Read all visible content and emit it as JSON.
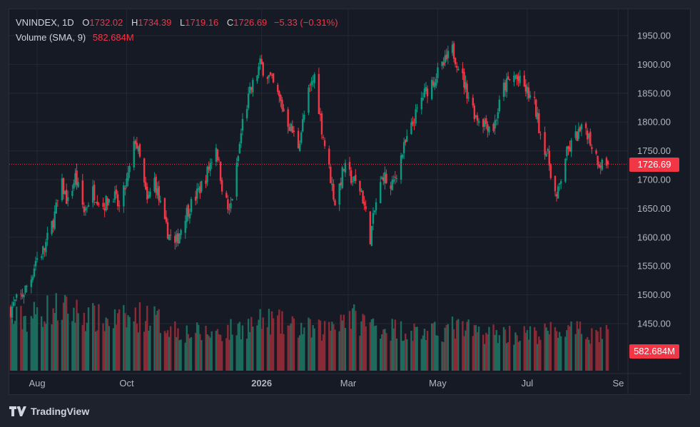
{
  "legend": {
    "symbol": "VNINDEX, 1D",
    "o_label": "O",
    "o": "1732.02",
    "h_label": "H",
    "h": "1734.39",
    "l_label": "L",
    "l": "1719.16",
    "c_label": "C",
    "c": "1726.69",
    "change": "−5.33 (−0.31%)",
    "volume_label": "Volume (SMA, 9)",
    "volume_value": "582.684M"
  },
  "price_badge": "1726.69",
  "volume_badge": "582.684M",
  "brand": "TradingView",
  "colors": {
    "up": "#089981",
    "down": "#f23645",
    "volume_up": "#1c6b5d",
    "volume_down": "#892b36",
    "background": "#161a25",
    "grid": "#242832"
  },
  "chart_data": {
    "type": "candlestick",
    "y_ticks": [
      "1950.00",
      "1900.00",
      "1850.00",
      "1800.00",
      "1750.00",
      "1700.00",
      "1650.00",
      "1600.00",
      "1550.00",
      "1500.00",
      "1450.00"
    ],
    "y_range": [
      1410,
      1970
    ],
    "x_ticks": [
      {
        "label": "Aug",
        "bold": false,
        "date": "2025-08-01"
      },
      {
        "label": "Oct",
        "bold": false,
        "date": "2025-10-01"
      },
      {
        "label": "2026",
        "bold": true,
        "date": "2026-01-01"
      },
      {
        "label": "Mar",
        "bold": false,
        "date": "2026-03-01"
      },
      {
        "label": "May",
        "bold": false,
        "date": "2026-05-01"
      },
      {
        "label": "Jul",
        "bold": false,
        "date": "2026-07-01"
      },
      {
        "label": "Se",
        "bold": false,
        "date": "2026-09-01"
      }
    ],
    "last_close": 1726.69,
    "series": [
      {
        "name": "close",
        "points": [
          [
            "2025-07-14",
            1475
          ],
          [
            "2025-07-18",
            1490
          ],
          [
            "2025-07-22",
            1500
          ],
          [
            "2025-07-28",
            1530
          ],
          [
            "2025-07-31",
            1560
          ],
          [
            "2025-08-06",
            1580
          ],
          [
            "2025-08-12",
            1630
          ],
          [
            "2025-08-18",
            1690
          ],
          [
            "2025-08-22",
            1660
          ],
          [
            "2025-08-27",
            1705
          ],
          [
            "2025-09-02",
            1645
          ],
          [
            "2025-09-08",
            1680
          ],
          [
            "2025-09-15",
            1655
          ],
          [
            "2025-09-22",
            1675
          ],
          [
            "2025-09-26",
            1650
          ],
          [
            "2025-10-02",
            1705
          ],
          [
            "2025-10-07",
            1770
          ],
          [
            "2025-10-10",
            1735
          ],
          [
            "2025-10-15",
            1660
          ],
          [
            "2025-10-20",
            1700
          ],
          [
            "2025-10-27",
            1620
          ],
          [
            "2025-11-03",
            1585
          ],
          [
            "2025-11-10",
            1640
          ],
          [
            "2025-11-17",
            1670
          ],
          [
            "2025-11-24",
            1705
          ],
          [
            "2025-12-01",
            1760
          ],
          [
            "2025-12-05",
            1690
          ],
          [
            "2025-12-10",
            1640
          ],
          [
            "2025-12-15",
            1720
          ],
          [
            "2025-12-19",
            1800
          ],
          [
            "2025-12-24",
            1850
          ],
          [
            "2025-12-31",
            1900
          ],
          [
            "2026-01-07",
            1875
          ],
          [
            "2026-01-13",
            1840
          ],
          [
            "2026-01-19",
            1800
          ],
          [
            "2026-01-26",
            1760
          ],
          [
            "2026-02-02",
            1850
          ],
          [
            "2026-02-06",
            1880
          ],
          [
            "2026-02-11",
            1790
          ],
          [
            "2026-02-20",
            1660
          ],
          [
            "2026-02-26",
            1720
          ],
          [
            "2026-03-04",
            1700
          ],
          [
            "2026-03-10",
            1680
          ],
          [
            "2026-03-16",
            1600
          ],
          [
            "2026-03-20",
            1660
          ],
          [
            "2026-03-25",
            1710
          ],
          [
            "2026-03-30",
            1680
          ],
          [
            "2026-04-06",
            1740
          ],
          [
            "2026-04-13",
            1790
          ],
          [
            "2026-04-20",
            1840
          ],
          [
            "2026-04-27",
            1870
          ],
          [
            "2026-05-04",
            1895
          ],
          [
            "2026-05-11",
            1925
          ],
          [
            "2026-05-15",
            1900
          ],
          [
            "2026-05-20",
            1860
          ],
          [
            "2026-05-27",
            1810
          ],
          [
            "2026-06-02",
            1800
          ],
          [
            "2026-06-08",
            1790
          ],
          [
            "2026-06-15",
            1860
          ],
          [
            "2026-06-22",
            1880
          ],
          [
            "2026-06-29",
            1860
          ],
          [
            "2026-07-06",
            1830
          ],
          [
            "2026-07-10",
            1780
          ],
          [
            "2026-07-15",
            1740
          ],
          [
            "2026-07-21",
            1665
          ],
          [
            "2026-07-27",
            1740
          ],
          [
            "2026-08-03",
            1775
          ],
          [
            "2026-08-10",
            1790
          ],
          [
            "2026-08-14",
            1760
          ],
          [
            "2026-08-19",
            1730
          ],
          [
            "2026-08-25",
            1726.69
          ]
        ]
      },
      {
        "name": "volume",
        "unit": "M",
        "range": [
          0,
          1100
        ],
        "points": [
          [
            "2025-07-14",
            700
          ],
          [
            "2025-07-28",
            760
          ],
          [
            "2025-08-12",
            880
          ],
          [
            "2025-08-27",
            820
          ],
          [
            "2025-09-15",
            700
          ],
          [
            "2025-10-02",
            720
          ],
          [
            "2025-10-15",
            780
          ],
          [
            "2025-10-27",
            650
          ],
          [
            "2025-11-10",
            540
          ],
          [
            "2025-11-24",
            520
          ],
          [
            "2025-12-10",
            560
          ],
          [
            "2025-12-24",
            640
          ],
          [
            "2026-01-07",
            700
          ],
          [
            "2026-01-19",
            620
          ],
          [
            "2026-02-02",
            580
          ],
          [
            "2026-02-11",
            560
          ],
          [
            "2026-02-26",
            780
          ],
          [
            "2026-03-16",
            650
          ],
          [
            "2026-03-30",
            590
          ],
          [
            "2026-04-13",
            560
          ],
          [
            "2026-04-27",
            520
          ],
          [
            "2026-05-11",
            600
          ],
          [
            "2026-05-27",
            540
          ],
          [
            "2026-06-15",
            520
          ],
          [
            "2026-07-06",
            500
          ],
          [
            "2026-07-21",
            560
          ],
          [
            "2026-08-03",
            540
          ],
          [
            "2026-08-19",
            520
          ],
          [
            "2026-08-25",
            582.684
          ]
        ]
      }
    ]
  }
}
